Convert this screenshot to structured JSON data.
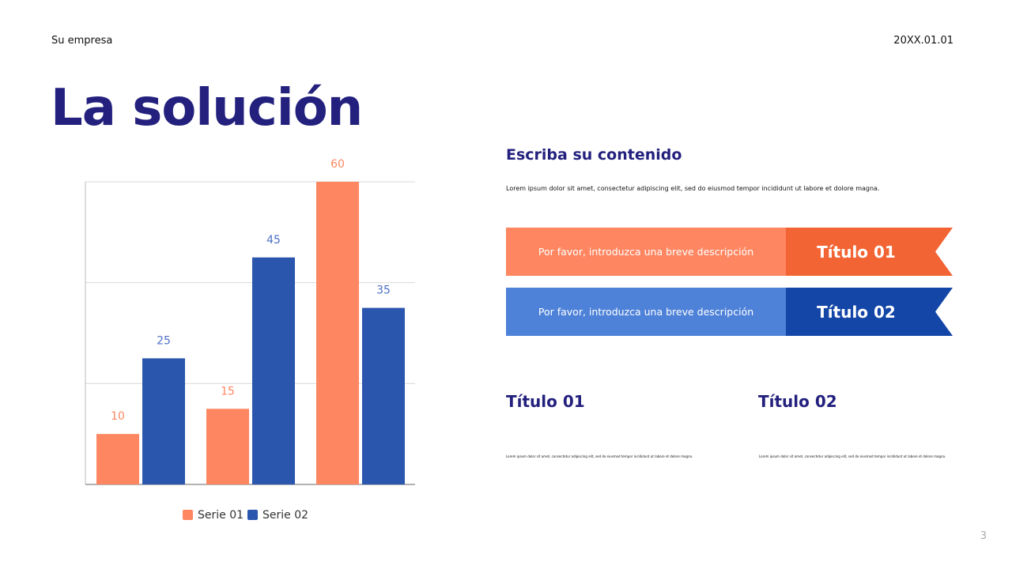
{
  "header": {
    "company": "Su empresa",
    "date": "20XX.01.01"
  },
  "title": "La solución",
  "content": {
    "subtitle": "Escriba su contenido",
    "intro": "Lorem ipsum dolor sit amet, consectetur adipiscing elit, sed do eiusmod tempor incididunt ut labore et dolore magna.",
    "bands": [
      {
        "description": "Por favor, introduzca una breve descripción",
        "title": "Título 01",
        "light": "#fe8762",
        "dark": "#f26433"
      },
      {
        "description": "Por favor, introduzca una breve descripción",
        "title": "Título 02",
        "light": "#4e82d9",
        "dark": "#1346a7"
      }
    ],
    "columns": [
      {
        "title": "Título 01",
        "text": "Lorem ipsum dolor sit amet, consectetur adipiscing elit, sed do eiusmod tempor incididunt ut labore et dolore magna."
      },
      {
        "title": "Título 02",
        "text": "Lorem ipsum dolor sit amet, consectetur adipiscing elit, sed do eiusmod tempor incididunt ut labore et dolore magna."
      }
    ]
  },
  "page_number": "3",
  "chart_data": {
    "type": "bar",
    "categories": [
      "",
      "",
      ""
    ],
    "series": [
      {
        "name": "Serie 01",
        "values": [
          10,
          15,
          60
        ],
        "color": "#fe8762"
      },
      {
        "name": "Serie 02",
        "values": [
          25,
          45,
          35
        ],
        "color": "#2a56ad"
      }
    ],
    "ylim": [
      0,
      60
    ],
    "grid": true,
    "gridlines": [
      20,
      40,
      60
    ],
    "data_labels": true,
    "legend": "bottom"
  }
}
